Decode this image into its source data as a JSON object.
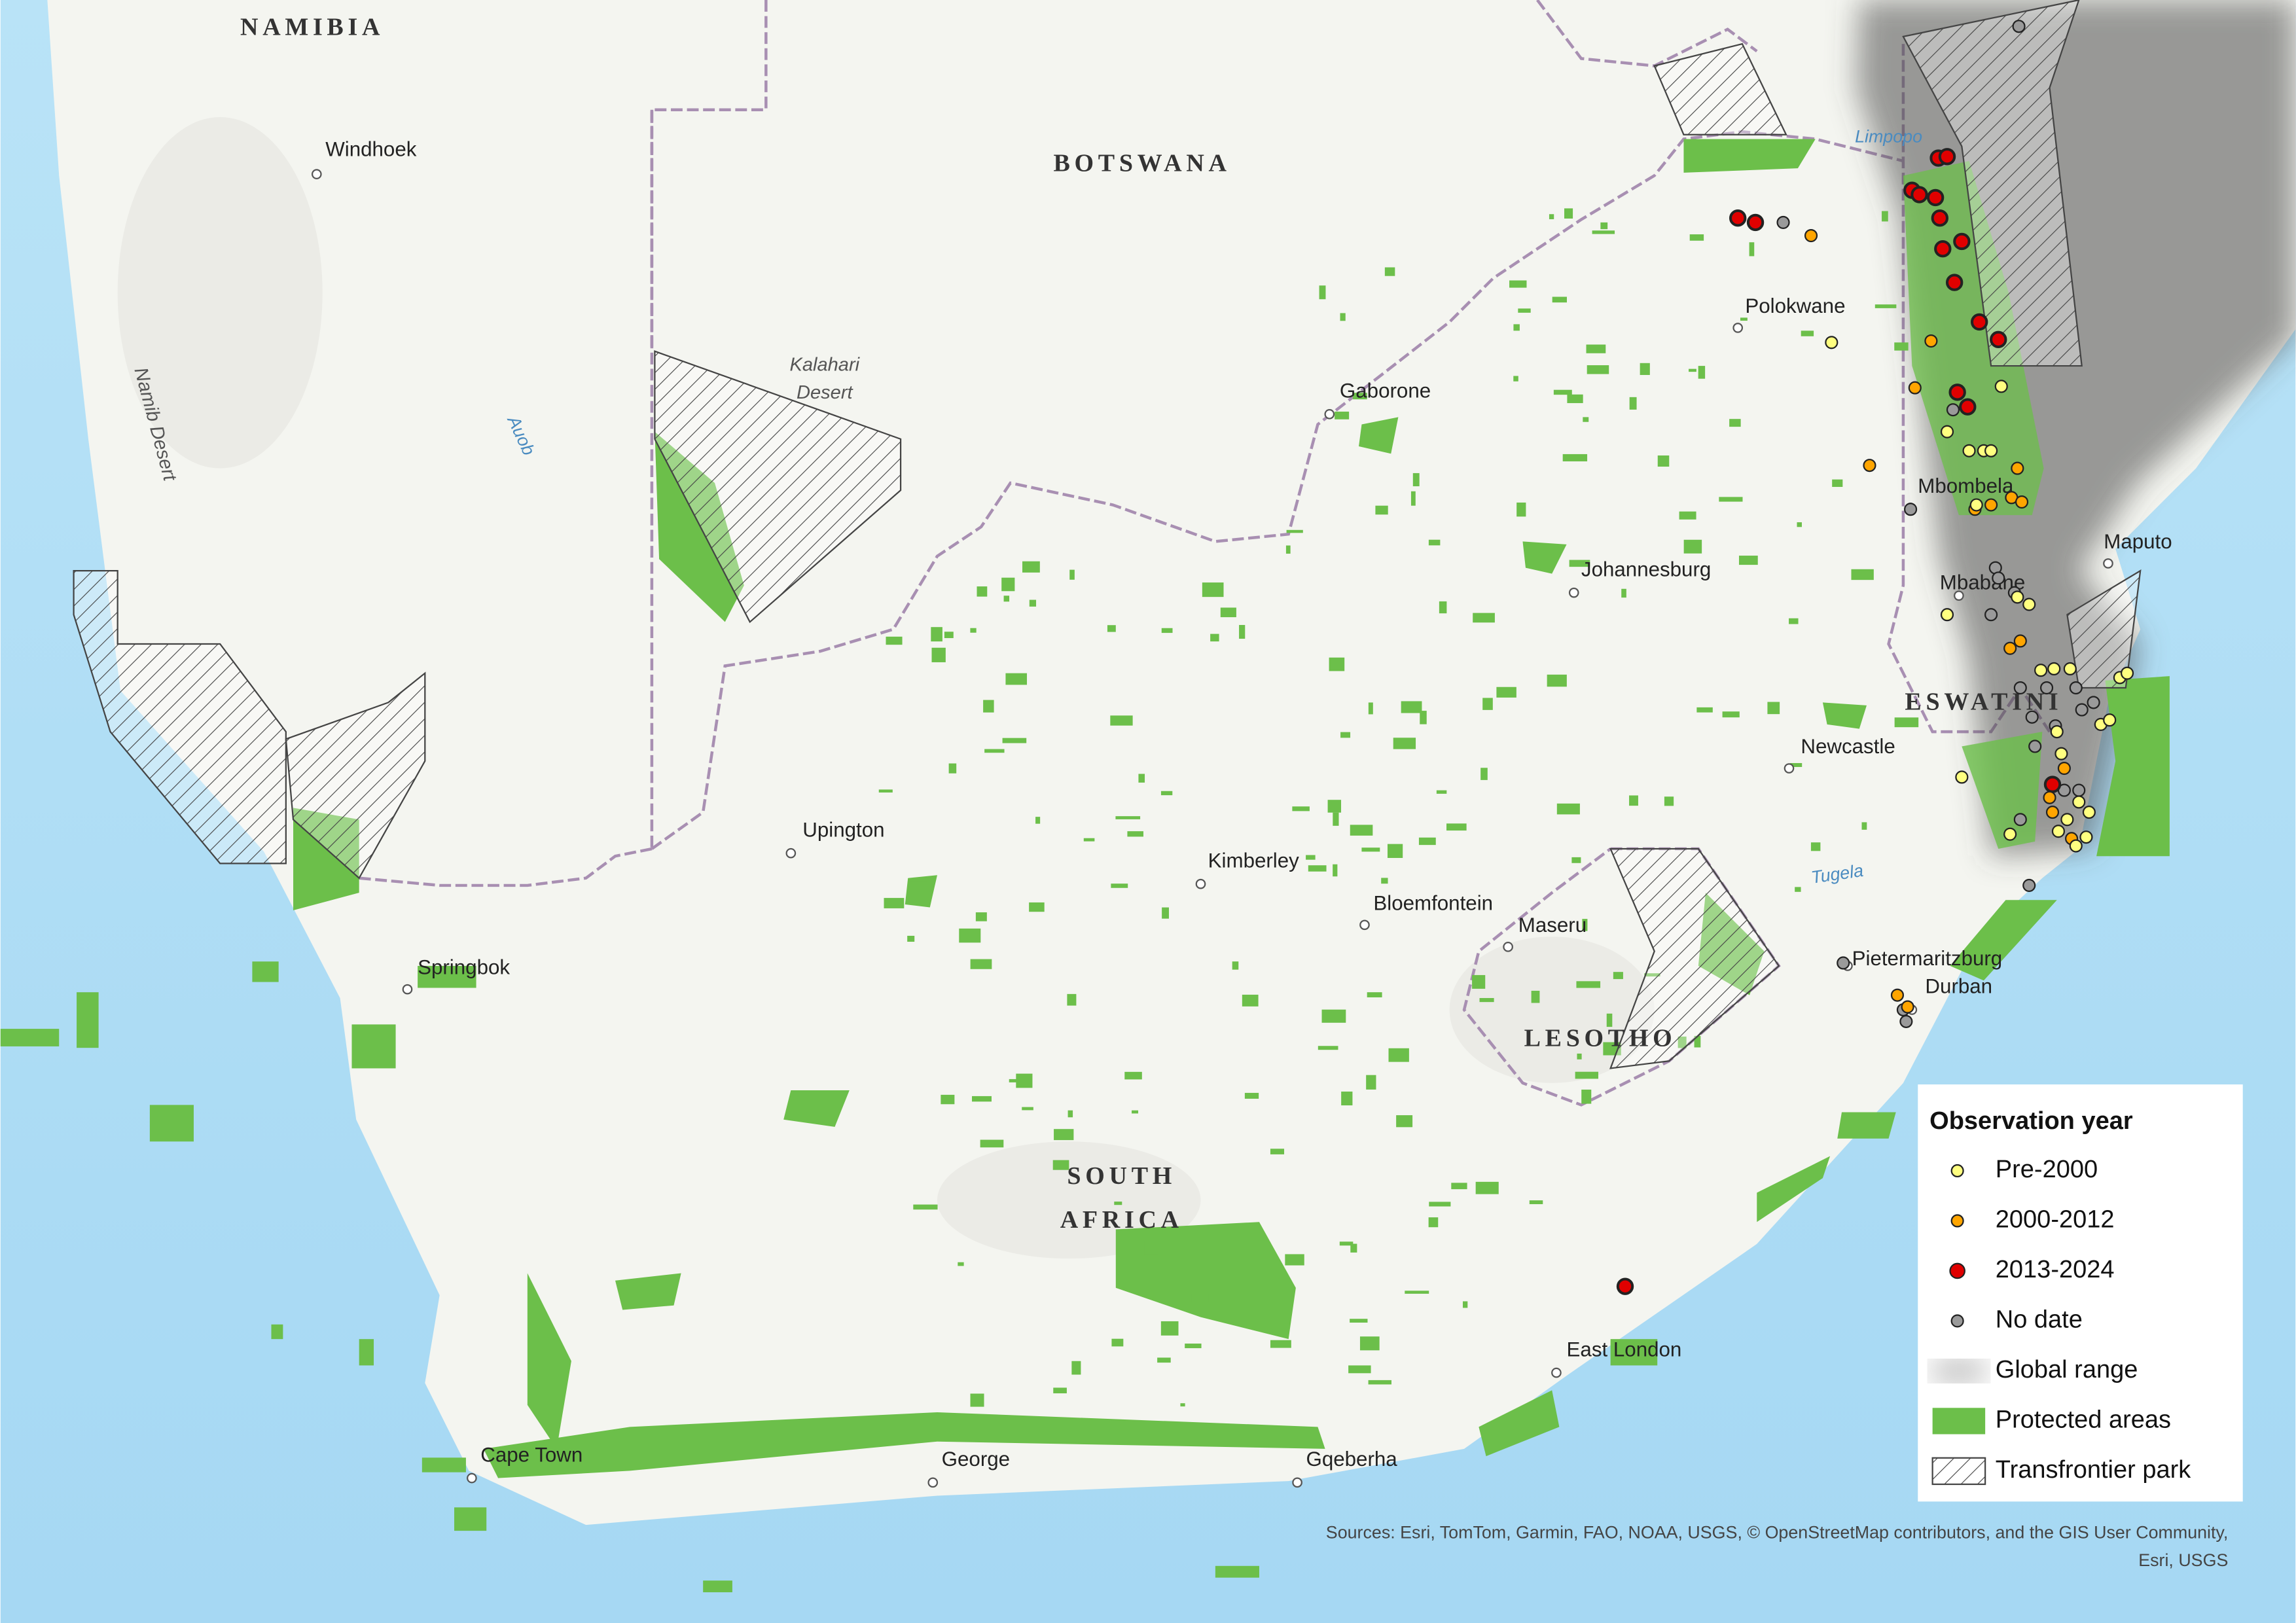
{
  "map": {
    "countries": [
      "NAMIBIA",
      "BOTSWANA",
      "ESWATINI",
      "LESOTHO"
    ],
    "country_multiline": [
      [
        "SOUTH",
        "AFRICA"
      ]
    ],
    "features": [
      "Namib Desert",
      "Auob",
      "Limpopo",
      "Tugela"
    ],
    "features_multiline": [
      [
        "Kalahari",
        "Desert"
      ]
    ],
    "cities": [
      "Windhoek",
      "Gaborone",
      "Polokwane",
      "Johannesburg",
      "Mbombela",
      "Maputo",
      "Mbabane",
      "Newcastle",
      "Upington",
      "Kimberley",
      "Bloemfontein",
      "Maseru",
      "Springbok",
      "Pietermaritzburg",
      "Durban",
      "East London",
      "Cape Town",
      "George",
      "Gqeberha"
    ],
    "legend": {
      "title": "Observation year",
      "items": [
        {
          "label": "Pre-2000",
          "color": "#ffff80"
        },
        {
          "label": "2000-2012",
          "color": "#ffa500"
        },
        {
          "label": "2013-2024",
          "color": "#e00000"
        },
        {
          "label": "No date",
          "color": "#9a9a9a"
        },
        {
          "label": "Global range",
          "color": "#b0b0b0"
        },
        {
          "label": "Protected areas",
          "color": "#6cbf4a"
        },
        {
          "label": "Transfrontier park",
          "color": "#444444"
        }
      ]
    },
    "sources": [
      "Sources: Esri, TomTom, Garmin, FAO, NOAA, USGS, © OpenStreetMap contributors, and the GIS User Community,",
      "Esri, USGS"
    ]
  }
}
